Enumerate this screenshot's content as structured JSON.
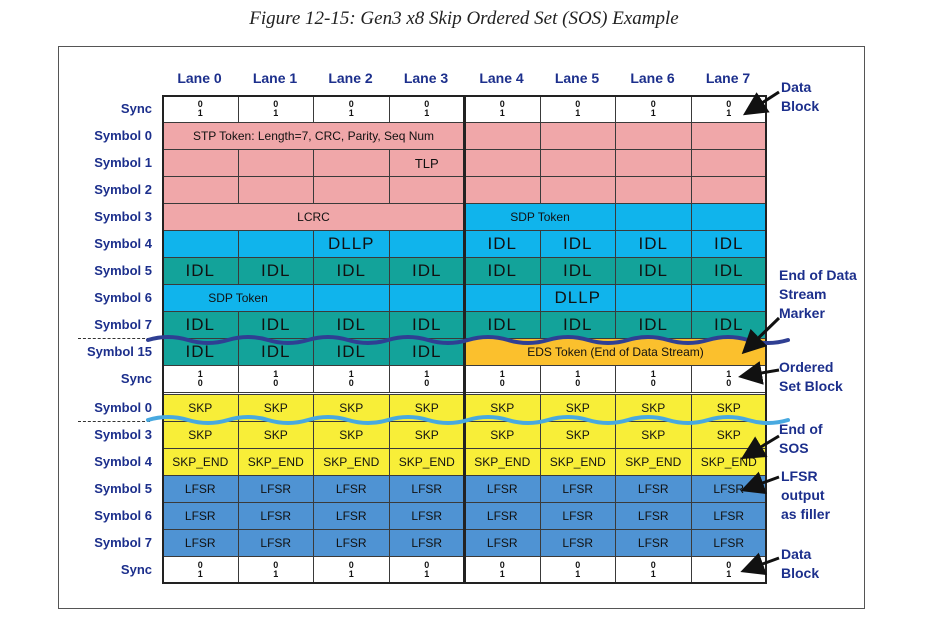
{
  "title": "Figure 12-15: Gen3 x8 Skip Ordered Set (SOS) Example",
  "lanes": [
    "Lane 0",
    "Lane 1",
    "Lane 2",
    "Lane 3",
    "Lane 4",
    "Lane 5",
    "Lane 6",
    "Lane 7"
  ],
  "row_labels": [
    "Sync",
    "Symbol 0",
    "Symbol 1",
    "Symbol 2",
    "Symbol 3",
    "Symbol 4",
    "Symbol 5",
    "Symbol 6",
    "Symbol 7",
    "Symbol 15",
    "Sync",
    "Symbol 0",
    "Symbol 3",
    "Symbol 4",
    "Symbol 5",
    "Symbol 6",
    "Symbol 7",
    "Sync"
  ],
  "sync_values": {
    "data_block": {
      "top": "0",
      "bottom": "1"
    },
    "ordered_set_block": {
      "top": "1",
      "bottom": "0"
    }
  },
  "tokens": {
    "stp": "STP Token: Length=7, CRC, Parity, Seq Num",
    "tlp": "TLP",
    "lcrc": "LCRC",
    "sdp": "SDP Token",
    "dllp": "DLLP",
    "idl": "IDL",
    "eds": "EDS Token (End of Data Stream)",
    "skp": "SKP",
    "skp_end": "SKP_END",
    "lfsr": "LFSR"
  },
  "annotations": {
    "data_block_top": "Data Block",
    "end_of_data_stream": "End of Data Stream Marker",
    "ordered_set_block": "Ordered Set Block",
    "end_of_sos": "End of SOS",
    "lfsr_filler": "LFSR output as filler",
    "data_block_bottom": "Data Block"
  },
  "colors": {
    "pink": "#f0a7a9",
    "cyan": "#10b4ec",
    "teal": "#13a39a",
    "orange": "#fbc02d",
    "yellow": "#f8ee38",
    "blue": "#4f93d3",
    "white": "#ffffff",
    "label": "#1c2f8c",
    "wave_dark": "#2f3f93",
    "wave_light": "#48a9e0"
  }
}
